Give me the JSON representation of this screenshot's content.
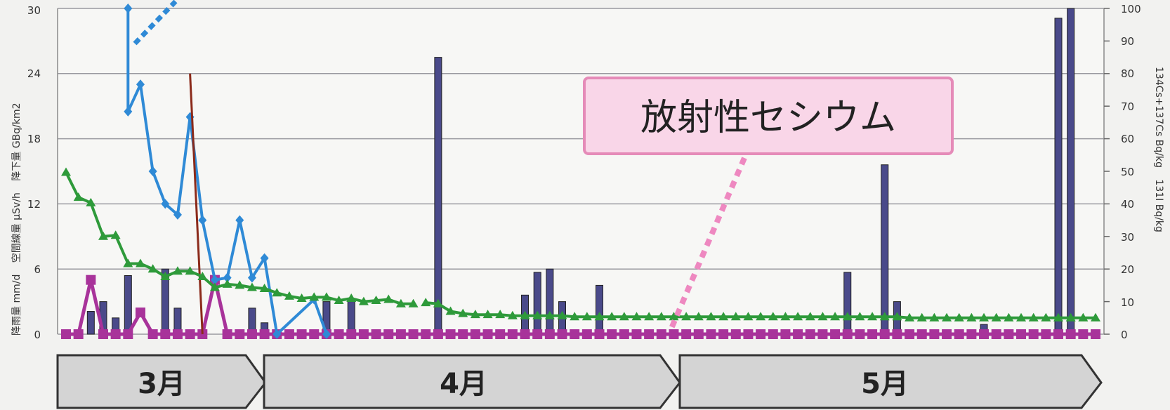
{
  "colors": {
    "rainfall": "#a8339a",
    "dose_rate": "#2f8ad6",
    "deposition": "#8b2a1a",
    "radioactivity_bars": "#4a4a8a",
    "cesium": "#2e9a3a",
    "callout_border": "#e58bb8",
    "callout_fill": "#f9d6e8",
    "callout_pointer": "#ee88c0",
    "top_pointer": "#2f8ad6",
    "month_banner": "#d4d4d4"
  },
  "chart_data": {
    "type": "line",
    "left_axis": {
      "label_parts": [
        "降雨量 mm/d",
        "空間線量 μSv/h",
        "降下量 GBq/km2"
      ],
      "ylim": [
        0,
        30
      ],
      "ticks": [
        "0",
        "6",
        "12",
        "18",
        "24",
        "30"
      ]
    },
    "right_axis": {
      "label_parts": [
        "131I Bq/kg",
        "134Cs+137Cs Bq/kg"
      ],
      "ylim": [
        0,
        100
      ],
      "ticks": [
        "0",
        "10",
        "20",
        "30",
        "40",
        "50",
        "60",
        "70",
        "80",
        "90",
        "100"
      ]
    },
    "x_range": [
      1,
      84
    ],
    "grid": true,
    "months": [
      {
        "label": "3月",
        "start": 1,
        "end": 15
      },
      {
        "label": "4月",
        "start": 15,
        "end": 45
      },
      {
        "label": "5月",
        "start": 45,
        "end": 84
      }
    ],
    "annotation": {
      "text": "放射性セシウム"
    },
    "series": [
      {
        "axis": "left",
        "style": "line-square",
        "points": [
          [
            1,
            0
          ],
          [
            2,
            0
          ],
          [
            3,
            5
          ],
          [
            4,
            0
          ],
          [
            5,
            0
          ],
          [
            6,
            0
          ],
          [
            7,
            2
          ],
          [
            8,
            0
          ],
          [
            9,
            0
          ],
          [
            10,
            0
          ],
          [
            11,
            0
          ],
          [
            12,
            0
          ],
          [
            13,
            5
          ],
          [
            14,
            0
          ],
          [
            15,
            0
          ],
          [
            16,
            0
          ],
          [
            17,
            0
          ],
          [
            18,
            0
          ],
          [
            19,
            0
          ],
          [
            20,
            0
          ],
          [
            21,
            0
          ],
          [
            22,
            0
          ],
          [
            23,
            0
          ],
          [
            24,
            0
          ],
          [
            25,
            0
          ],
          [
            26,
            0
          ],
          [
            27,
            0
          ],
          [
            28,
            0
          ],
          [
            29,
            0
          ],
          [
            30,
            0
          ],
          [
            31,
            0
          ],
          [
            32,
            0
          ],
          [
            33,
            0
          ],
          [
            34,
            0
          ],
          [
            35,
            0
          ],
          [
            36,
            0
          ],
          [
            37,
            0
          ],
          [
            38,
            0
          ],
          [
            39,
            0
          ],
          [
            40,
            0
          ],
          [
            41,
            0
          ],
          [
            42,
            0
          ],
          [
            43,
            0
          ],
          [
            44,
            0
          ],
          [
            45,
            0
          ],
          [
            46,
            0
          ],
          [
            47,
            0
          ],
          [
            48,
            0
          ],
          [
            49,
            0
          ],
          [
            50,
            0
          ],
          [
            51,
            0
          ],
          [
            52,
            0
          ],
          [
            53,
            0
          ],
          [
            54,
            0
          ],
          [
            55,
            0
          ],
          [
            56,
            0
          ],
          [
            57,
            0
          ],
          [
            58,
            0
          ],
          [
            59,
            0
          ],
          [
            60,
            0
          ],
          [
            61,
            0
          ],
          [
            62,
            0
          ],
          [
            63,
            0
          ],
          [
            64,
            0
          ],
          [
            65,
            0
          ],
          [
            66,
            0
          ],
          [
            67,
            0
          ],
          [
            68,
            0
          ],
          [
            69,
            0
          ],
          [
            70,
            0
          ],
          [
            71,
            0
          ],
          [
            72,
            0
          ],
          [
            73,
            0
          ],
          [
            74,
            0
          ],
          [
            75,
            0
          ],
          [
            76,
            0
          ],
          [
            77,
            0
          ],
          [
            78,
            0
          ],
          [
            79,
            0
          ],
          [
            80,
            0
          ],
          [
            81,
            0
          ],
          [
            82,
            0
          ],
          [
            83,
            0
          ],
          [
            84,
            0
          ]
        ]
      },
      {
        "axis": "left",
        "style": "line-diamond",
        "points": [
          [
            6,
            30
          ],
          [
            6,
            20.5
          ],
          [
            7,
            23
          ],
          [
            8,
            15
          ],
          [
            9,
            12
          ],
          [
            10,
            11
          ],
          [
            11,
            20
          ],
          [
            12,
            10.5
          ],
          [
            13,
            5
          ],
          [
            14,
            5.2
          ],
          [
            15,
            10.5
          ],
          [
            16,
            5.2
          ],
          [
            17,
            7
          ],
          [
            18,
            0
          ],
          [
            21,
            3.2
          ],
          [
            22,
            0
          ]
        ]
      },
      {
        "axis": "left",
        "style": "thin-line",
        "points": [
          [
            11,
            24
          ],
          [
            12,
            0
          ]
        ]
      },
      {
        "axis": "right",
        "style": "bar",
        "points": [
          [
            3,
            7
          ],
          [
            4,
            10
          ],
          [
            5,
            5
          ],
          [
            6,
            18
          ],
          [
            9,
            20
          ],
          [
            10,
            8
          ],
          [
            16,
            8
          ],
          [
            17,
            3.5
          ],
          [
            22,
            10
          ],
          [
            24,
            10
          ],
          [
            31,
            85
          ],
          [
            38,
            12
          ],
          [
            39,
            19
          ],
          [
            40,
            20
          ],
          [
            41,
            10
          ],
          [
            44,
            15
          ],
          [
            64,
            19
          ],
          [
            67,
            52
          ],
          [
            68,
            10
          ],
          [
            75,
            3
          ],
          [
            81,
            97
          ],
          [
            82,
            100
          ]
        ]
      },
      {
        "axis": "left",
        "style": "line-triangle",
        "segments": [
          [
            [
              1,
              14.9
            ],
            [
              2,
              12.6
            ],
            [
              3,
              12.1
            ],
            [
              4,
              9
            ],
            [
              5,
              9.1
            ],
            [
              6,
              6.5
            ],
            [
              7,
              6.5
            ],
            [
              8,
              6
            ],
            [
              9,
              5.3
            ],
            [
              10,
              5.8
            ],
            [
              11,
              5.8
            ],
            [
              12,
              5.3
            ],
            [
              13,
              4.3
            ],
            [
              14,
              4.6
            ],
            [
              15,
              4.5
            ],
            [
              16,
              4.3
            ],
            [
              17,
              4.2
            ],
            [
              18,
              3.8
            ],
            [
              19,
              3.5
            ],
            [
              20,
              3.3
            ],
            [
              21,
              3.4
            ],
            [
              22,
              3.4
            ],
            [
              23,
              3.1
            ],
            [
              24,
              3.3
            ],
            [
              25,
              3
            ],
            [
              26,
              3.1
            ],
            [
              27,
              3.2
            ],
            [
              28,
              2.8
            ],
            [
              29,
              2.8
            ]
          ],
          [
            [
              30,
              2.9
            ],
            [
              31,
              2.8
            ],
            [
              32,
              2.1
            ],
            [
              33,
              1.9
            ],
            [
              34,
              1.8
            ],
            [
              35,
              1.8
            ],
            [
              36,
              1.8
            ],
            [
              37,
              1.7
            ],
            [
              38,
              1.7
            ],
            [
              39,
              1.7
            ],
            [
              40,
              1.7
            ],
            [
              41,
              1.7
            ],
            [
              42,
              1.6
            ],
            [
              43,
              1.6
            ],
            [
              44,
              1.6
            ],
            [
              45,
              1.6
            ],
            [
              46,
              1.6
            ],
            [
              47,
              1.6
            ],
            [
              48,
              1.6
            ],
            [
              49,
              1.6
            ],
            [
              50,
              1.6
            ],
            [
              51,
              1.6
            ],
            [
              52,
              1.6
            ],
            [
              53,
              1.6
            ],
            [
              54,
              1.6
            ],
            [
              55,
              1.6
            ],
            [
              56,
              1.6
            ],
            [
              57,
              1.6
            ],
            [
              58,
              1.6
            ],
            [
              59,
              1.6
            ],
            [
              60,
              1.6
            ],
            [
              61,
              1.6
            ],
            [
              62,
              1.6
            ],
            [
              63,
              1.6
            ],
            [
              64,
              1.6
            ],
            [
              65,
              1.6
            ],
            [
              66,
              1.6
            ],
            [
              67,
              1.6
            ],
            [
              68,
              1.6
            ],
            [
              69,
              1.5
            ],
            [
              70,
              1.5
            ],
            [
              71,
              1.5
            ],
            [
              72,
              1.5
            ],
            [
              73,
              1.5
            ],
            [
              74,
              1.5
            ],
            [
              75,
              1.5
            ],
            [
              76,
              1.5
            ],
            [
              77,
              1.5
            ],
            [
              78,
              1.5
            ],
            [
              79,
              1.5
            ],
            [
              80,
              1.5
            ],
            [
              81,
              1.5
            ],
            [
              82,
              1.5
            ],
            [
              83,
              1.5
            ],
            [
              84,
              1.5
            ]
          ]
        ]
      }
    ]
  }
}
